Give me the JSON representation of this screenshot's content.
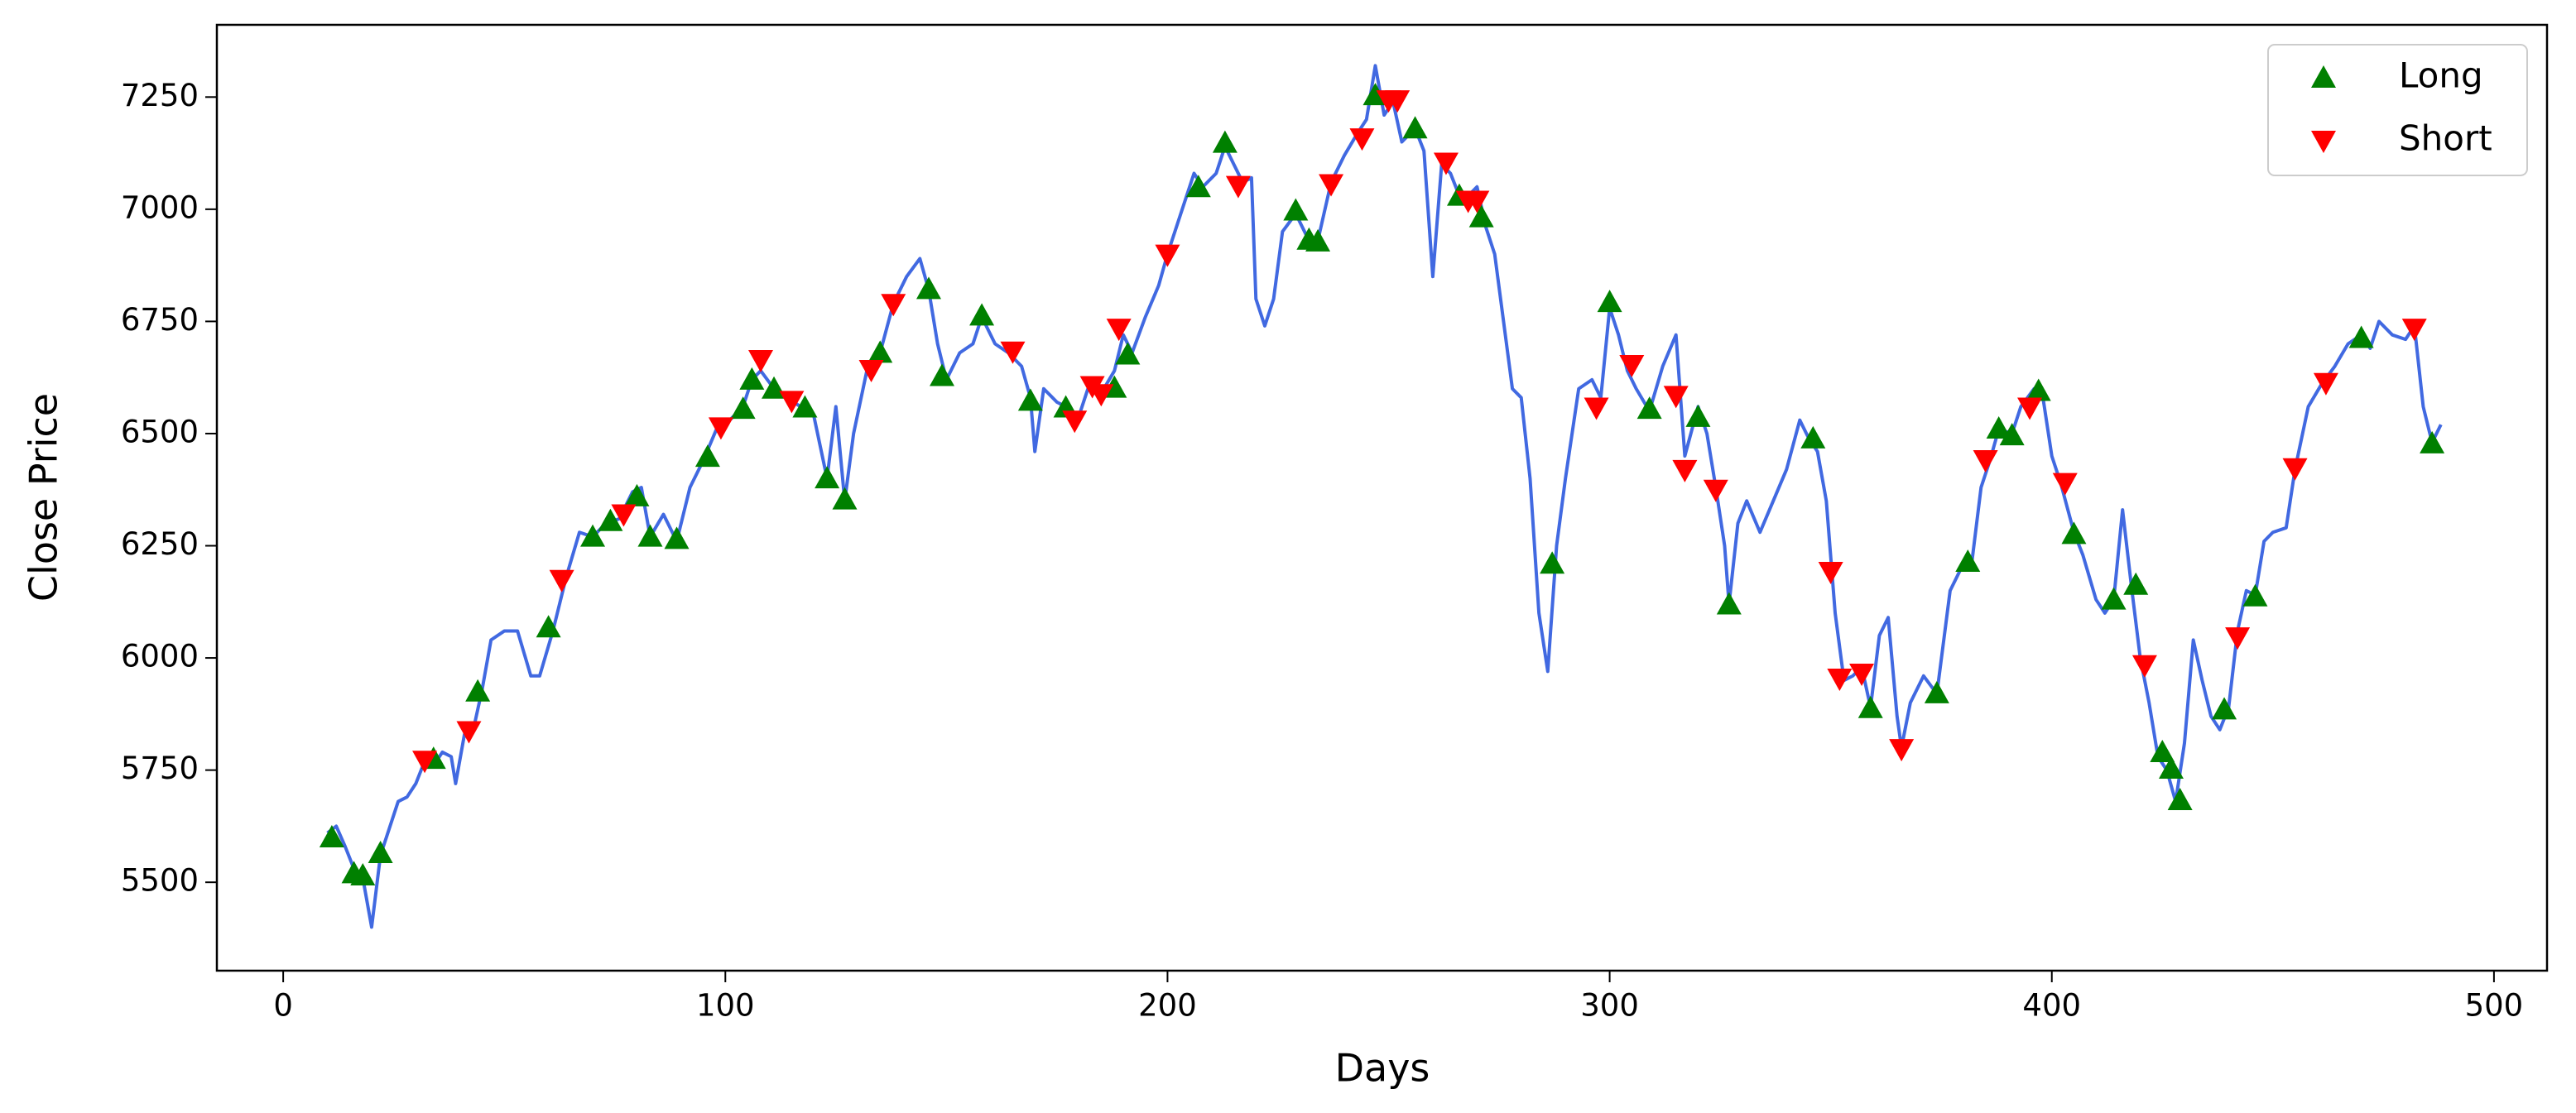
{
  "chart_data": {
    "type": "line",
    "x_label": "Days",
    "y_label": "Close Price",
    "xlim": [
      -15,
      512
    ],
    "ylim": [
      5303,
      7411
    ],
    "xticks": [
      0,
      100,
      200,
      300,
      400,
      500
    ],
    "yticks": [
      5500,
      5750,
      6000,
      6250,
      6500,
      6750,
      7000,
      7250
    ],
    "grid": false,
    "legend_position": "upper right",
    "line": {
      "color": "#4169e1",
      "x": [
        10,
        12,
        14,
        16,
        18,
        20,
        22,
        24,
        26,
        28,
        30,
        32,
        34,
        36,
        38,
        39,
        41,
        43,
        45,
        47,
        50,
        53,
        56,
        58,
        61,
        64,
        67,
        70,
        73,
        76,
        79,
        81,
        83,
        86,
        89,
        92,
        95,
        98,
        101,
        104,
        106,
        108,
        111,
        114,
        117,
        120,
        123,
        125,
        127,
        129,
        132,
        135,
        138,
        141,
        144,
        146,
        148,
        150,
        153,
        156,
        158,
        161,
        164,
        167,
        169,
        170,
        172,
        175,
        177,
        179,
        182,
        185,
        188,
        190,
        192,
        195,
        198,
        200,
        203,
        206,
        208,
        211,
        213,
        215,
        217,
        219,
        220,
        222,
        224,
        226,
        229,
        232,
        234,
        237,
        240,
        243,
        245,
        247,
        249,
        251,
        253,
        256,
        258,
        260,
        262,
        264,
        266,
        268,
        270,
        272,
        274,
        276,
        278,
        280,
        282,
        284,
        286,
        288,
        290,
        293,
        296,
        298,
        300,
        302,
        304,
        306,
        309,
        312,
        315,
        317,
        320,
        322,
        324,
        326,
        327,
        329,
        331,
        334,
        337,
        340,
        343,
        345,
        347,
        349,
        351,
        353,
        355,
        357,
        359,
        361,
        363,
        365,
        366,
        368,
        371,
        374,
        377,
        380,
        382,
        384,
        386,
        388,
        391,
        393,
        396,
        398,
        400,
        402,
        405,
        407,
        410,
        412,
        414,
        416,
        418,
        420,
        422,
        424,
        426,
        428,
        430,
        432,
        434,
        436,
        438,
        440,
        442,
        444,
        446,
        448,
        450,
        453,
        455,
        458,
        461,
        464,
        467,
        470,
        472,
        474,
        477,
        480,
        482,
        484,
        486,
        488
      ],
      "values": [
        5610,
        5625,
        5580,
        5530,
        5510,
        5400,
        5560,
        5620,
        5680,
        5690,
        5720,
        5770,
        5760,
        5790,
        5780,
        5720,
        5830,
        5840,
        5930,
        6040,
        6060,
        6060,
        5960,
        5960,
        6060,
        6180,
        6280,
        6270,
        6300,
        6310,
        6370,
        6380,
        6270,
        6320,
        6260,
        6380,
        6440,
        6510,
        6530,
        6560,
        6620,
        6640,
        6600,
        6580,
        6560,
        6540,
        6400,
        6560,
        6350,
        6500,
        6640,
        6680,
        6790,
        6850,
        6890,
        6820,
        6700,
        6620,
        6680,
        6700,
        6760,
        6700,
        6680,
        6650,
        6580,
        6460,
        6600,
        6570,
        6560,
        6510,
        6600,
        6590,
        6640,
        6720,
        6680,
        6760,
        6830,
        6900,
        6990,
        7080,
        7050,
        7080,
        7140,
        7100,
        7060,
        7070,
        6800,
        6740,
        6800,
        6950,
        6990,
        6930,
        6930,
        7060,
        7120,
        7170,
        7200,
        7320,
        7210,
        7240,
        7150,
        7180,
        7130,
        6850,
        7100,
        7080,
        7030,
        7030,
        7050,
        6960,
        6900,
        6750,
        6600,
        6580,
        6400,
        6100,
        5970,
        6250,
        6400,
        6600,
        6620,
        6580,
        6780,
        6720,
        6640,
        6600,
        6550,
        6650,
        6720,
        6450,
        6560,
        6500,
        6380,
        6250,
        6120,
        6300,
        6350,
        6280,
        6350,
        6420,
        6530,
        6490,
        6460,
        6350,
        6100,
        5950,
        5960,
        5980,
        5890,
        6050,
        6090,
        5870,
        5800,
        5900,
        5960,
        5920,
        6150,
        6210,
        6220,
        6380,
        6440,
        6510,
        6500,
        6560,
        6600,
        6580,
        6450,
        6390,
        6280,
        6230,
        6130,
        6100,
        6130,
        6330,
        6160,
        6000,
        5900,
        5780,
        5750,
        5680,
        5810,
        6040,
        5950,
        5870,
        5840,
        5890,
        6060,
        6150,
        6140,
        6260,
        6280,
        6290,
        6420,
        6560,
        6610,
        6650,
        6700,
        6720,
        6690,
        6750,
        6720,
        6710,
        6740,
        6560,
        6480,
        6520
      ]
    },
    "series": [
      {
        "name": "Long",
        "color": "#008000",
        "marker": "up",
        "x": [
          11,
          16,
          18,
          22,
          34,
          44,
          60,
          70,
          74,
          80,
          83,
          89,
          96,
          104,
          106,
          111,
          118,
          123,
          127,
          135,
          146,
          149,
          158,
          169,
          177,
          188,
          191,
          207,
          213,
          229,
          232,
          234,
          247,
          256,
          266,
          271,
          287,
          300,
          309,
          320,
          327,
          346,
          359,
          374,
          381,
          388,
          391,
          397,
          405,
          414,
          419,
          425,
          427,
          429,
          439,
          446,
          470,
          486
        ],
        "values": [
          5600,
          5520,
          5515,
          5565,
          5775,
          5925,
          6068,
          6270,
          6305,
          6360,
          6270,
          6265,
          6448,
          6555,
          6620,
          6600,
          6558,
          6400,
          6353,
          6680,
          6822,
          6628,
          6763,
          6573,
          6558,
          6602,
          6676,
          7049,
          7148,
          6997,
          6932,
          6928,
          7254,
          7180,
          7030,
          6982,
          6210,
          6793,
          6555,
          6537,
          6119,
          6489,
          5888,
          5921,
          6214,
          6511,
          6496,
          6595,
          6276,
          6130,
          6163,
          5790,
          5753,
          5683,
          5885,
          6137,
          6713,
          6478
        ]
      },
      {
        "name": "Short",
        "color": "#ff0000",
        "marker": "down",
        "x": [
          32,
          42,
          63,
          77,
          99,
          108,
          115,
          133,
          138,
          165,
          179,
          183,
          185,
          189,
          200,
          216,
          237,
          244,
          250,
          252,
          263,
          268,
          270,
          297,
          305,
          315,
          317,
          324,
          350,
          352,
          357,
          366,
          385,
          395,
          403,
          421,
          442,
          455,
          462,
          482
        ],
        "values": [
          5771,
          5837,
          6174,
          6320,
          6514,
          6664,
          6573,
          6642,
          6789,
          6683,
          6529,
          6606,
          6588,
          6734,
          6899,
          7052,
          7056,
          7158,
          7243,
          7243,
          7104,
          7019,
          7019,
          6558,
          6653,
          6584,
          6419,
          6375,
          6192,
          5954,
          5965,
          5797,
          6441,
          6558,
          6390,
          5984,
          6046,
          6423,
          6613,
          6734
        ]
      }
    ]
  }
}
